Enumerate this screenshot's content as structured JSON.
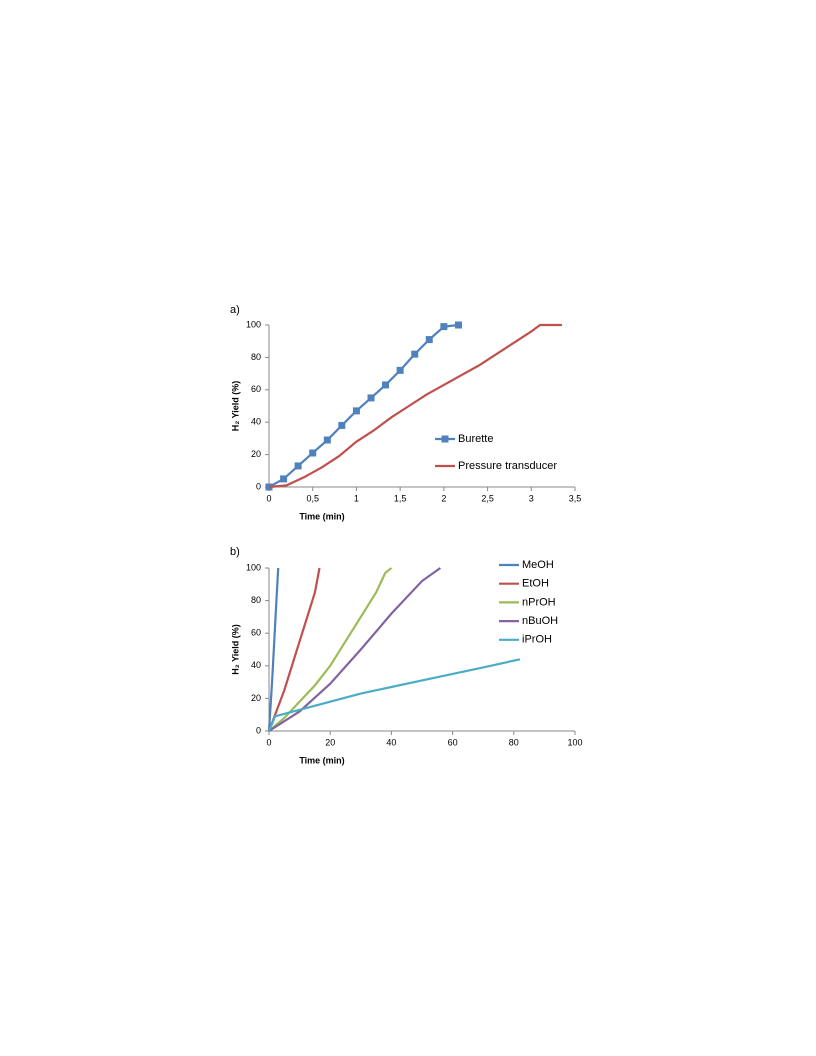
{
  "chart_data": [
    {
      "type": "line",
      "panel": "a)",
      "xlabel": "Time (min)",
      "ylabel": "H₂ Yield (%)",
      "xlim": [
        0,
        3.5
      ],
      "xticks": [
        0,
        {
          "value": 0.5,
          "label": "0,5"
        },
        1,
        {
          "value": 1.5,
          "label": "1,5"
        },
        2,
        {
          "value": 2.5,
          "label": "2,5"
        },
        3,
        {
          "value": 3.5,
          "label": "3,5"
        }
      ],
      "ylim": [
        0,
        100
      ],
      "yticks": [
        0,
        20,
        40,
        60,
        80,
        100
      ],
      "grid": false,
      "legend": "lower right",
      "series": [
        {
          "name": "Burette",
          "color": "#4f81bd",
          "marker": "square",
          "x": [
            0,
            0.167,
            0.333,
            0.5,
            0.667,
            0.833,
            1.0,
            1.167,
            1.333,
            1.5,
            1.667,
            1.833,
            2.0,
            2.167
          ],
          "values": [
            0,
            5,
            13,
            21,
            29,
            38,
            47,
            55,
            63,
            72,
            82,
            91,
            99,
            100
          ]
        },
        {
          "name": "Pressure transducer",
          "color": "#c0504d",
          "x": [
            0,
            0.2,
            0.4,
            0.6,
            0.8,
            1.0,
            1.2,
            1.4,
            1.6,
            1.8,
            2.0,
            2.2,
            2.4,
            2.6,
            2.8,
            3.0,
            3.1,
            3.35
          ],
          "values": [
            0,
            1,
            6,
            12,
            19,
            28,
            35,
            43,
            50,
            57,
            63,
            69,
            75,
            82,
            89,
            96,
            100,
            100
          ]
        }
      ]
    },
    {
      "type": "line",
      "panel": "b)",
      "xlabel": "Time (min)",
      "ylabel": "H₂ Yield (%)",
      "xlim": [
        0,
        100
      ],
      "xticks": [
        0,
        20,
        40,
        60,
        80,
        100
      ],
      "ylim": [
        0,
        100
      ],
      "yticks": [
        0,
        20,
        40,
        60,
        80,
        100
      ],
      "grid": false,
      "legend": "right",
      "series": [
        {
          "name": "MeOH",
          "color": "#4f81bd",
          "x": [
            0,
            1,
            2,
            3
          ],
          "values": [
            0,
            30,
            65,
            100
          ]
        },
        {
          "name": "EtOH",
          "color": "#c0504d",
          "x": [
            0,
            5,
            10,
            15,
            16.5
          ],
          "values": [
            0,
            25,
            55,
            85,
            100
          ]
        },
        {
          "name": "nPrOH",
          "color": "#9bbb59",
          "x": [
            0,
            5,
            10,
            15,
            20,
            25,
            30,
            35,
            38,
            40
          ],
          "values": [
            0,
            8,
            18,
            28,
            40,
            55,
            70,
            85,
            97,
            100
          ]
        },
        {
          "name": "nBuOH",
          "color": "#8064a2",
          "x": [
            0,
            10,
            20,
            30,
            40,
            50,
            56
          ],
          "values": [
            0,
            12,
            29,
            50,
            72,
            92,
            100
          ]
        },
        {
          "name": "iPrOH",
          "color": "#4bacc6",
          "x": [
            0,
            2,
            10,
            20,
            30,
            40,
            50,
            60,
            70,
            82
          ],
          "values": [
            0,
            9,
            13,
            18,
            23,
            27,
            31,
            35,
            39,
            44
          ]
        }
      ]
    }
  ]
}
